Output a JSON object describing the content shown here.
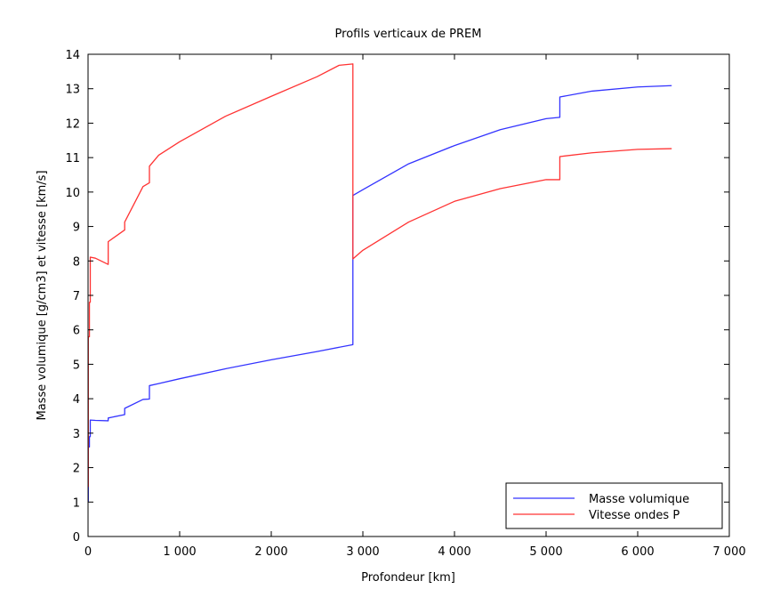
{
  "chart_data": {
    "type": "line",
    "title": "Profils verticaux de PREM",
    "xlabel": "Profondeur [km]",
    "ylabel": "Masse volumique [g/cm3] et vitesse [km/s]",
    "xlim": [
      0,
      7000
    ],
    "ylim": [
      0,
      14
    ],
    "xticks": [
      0,
      1000,
      2000,
      3000,
      4000,
      5000,
      6000,
      7000
    ],
    "xtick_labels": [
      "0",
      "1 000",
      "2 000",
      "3 000",
      "4 000",
      "5 000",
      "6 000",
      "7 000"
    ],
    "yticks": [
      0,
      1,
      2,
      3,
      4,
      5,
      6,
      7,
      8,
      9,
      10,
      11,
      12,
      13,
      14
    ],
    "ytick_labels": [
      "0",
      "1",
      "2",
      "3",
      "4",
      "5",
      "6",
      "7",
      "8",
      "9",
      "10",
      "11",
      "12",
      "13",
      "14"
    ],
    "grid": false,
    "legend_position": "bottom-right",
    "series": [
      {
        "name": "Masse volumique",
        "color": "#3333ff",
        "x": [
          0,
          3,
          3,
          15,
          15,
          24.4,
          24.4,
          80,
          220,
          220,
          400,
          400,
          600,
          670,
          670,
          771,
          1000,
          1500,
          2000,
          2500,
          2891,
          2891,
          3000,
          3500,
          4000,
          4500,
          5000,
          5150,
          5150,
          5500,
          6000,
          6371
        ],
        "y": [
          1.02,
          1.02,
          2.6,
          2.6,
          2.9,
          2.9,
          3.38,
          3.37,
          3.36,
          3.44,
          3.54,
          3.72,
          3.98,
          3.99,
          4.38,
          4.44,
          4.58,
          4.87,
          5.13,
          5.37,
          5.57,
          9.9,
          10.07,
          10.82,
          11.35,
          11.81,
          12.13,
          12.17,
          12.76,
          12.93,
          13.05,
          13.09
        ]
      },
      {
        "name": "Vitesse ondes P",
        "color": "#ff3333",
        "x": [
          0,
          3,
          3,
          15,
          15,
          24.4,
          24.4,
          80,
          220,
          220,
          400,
          400,
          600,
          670,
          670,
          771,
          1000,
          1500,
          2000,
          2500,
          2741,
          2891,
          2891,
          3000,
          3500,
          4000,
          4500,
          5000,
          5150,
          5150,
          5500,
          6000,
          6371
        ],
        "y": [
          1.45,
          1.45,
          5.8,
          5.8,
          6.8,
          6.8,
          8.11,
          8.08,
          7.9,
          8.56,
          8.9,
          9.13,
          10.16,
          10.27,
          10.75,
          11.07,
          11.46,
          12.2,
          12.78,
          13.35,
          13.68,
          13.72,
          8.06,
          8.31,
          9.13,
          9.73,
          10.1,
          10.36,
          10.36,
          11.03,
          11.14,
          11.24,
          11.26
        ]
      }
    ]
  }
}
